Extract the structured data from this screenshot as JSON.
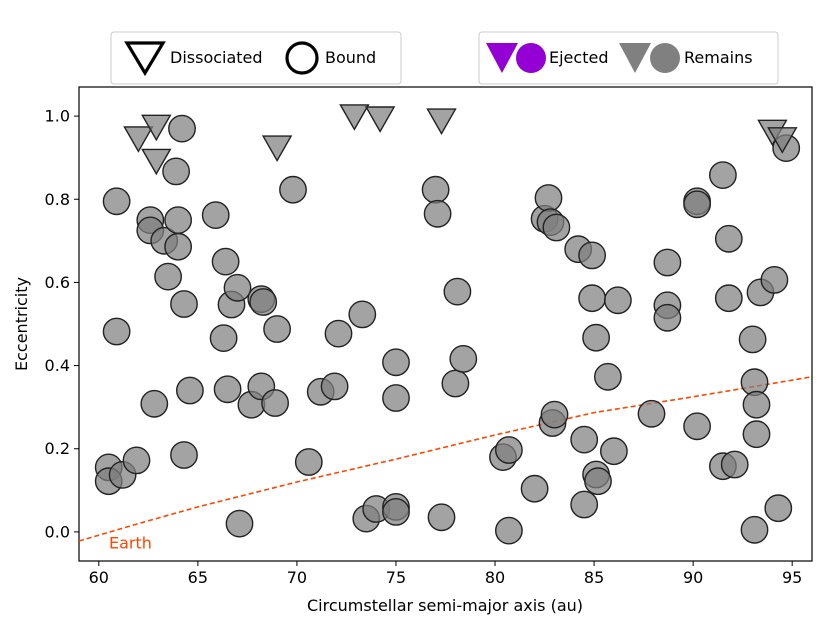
{
  "chart_data": {
    "type": "scatter",
    "xlabel": "Circumstellar semi-major axis (au)",
    "ylabel": "Eccentricity",
    "xlim": [
      59,
      96
    ],
    "ylim": [
      -0.07,
      1.07
    ],
    "x_ticks": [
      60,
      65,
      70,
      75,
      80,
      85,
      90,
      95
    ],
    "y_ticks": [
      0.0,
      0.2,
      0.4,
      0.6,
      0.8,
      1.0
    ],
    "y_tick_labels": [
      "0.0",
      "0.2",
      "0.4",
      "0.6",
      "0.8",
      "1.0"
    ],
    "grid": false,
    "legend": {
      "left": {
        "placement": "top-left",
        "entries": [
          {
            "marker": "triangle-down-open",
            "label": "Dissociated"
          },
          {
            "marker": "circle-open",
            "label": "Bound"
          }
        ]
      },
      "right": {
        "placement": "top-right",
        "entries": [
          {
            "markers": [
              "triangle-down",
              "circle"
            ],
            "color": "#9400D3",
            "label": "Ejected"
          },
          {
            "markers": [
              "triangle-down",
              "circle"
            ],
            "color": "#808080",
            "label": "Remains"
          }
        ]
      }
    },
    "colors": {
      "remains": "#808080",
      "ejected": "#9400D3",
      "earth_line": "#FF4500"
    },
    "earth_curve": {
      "label": "Earth",
      "points": [
        [
          59,
          -0.022
        ],
        [
          62,
          0.02
        ],
        [
          65,
          0.06
        ],
        [
          70,
          0.12
        ],
        [
          75,
          0.175
        ],
        [
          80,
          0.233
        ],
        [
          85,
          0.287
        ],
        [
          90,
          0.325
        ],
        [
          96,
          0.373
        ]
      ]
    },
    "series": [
      {
        "name": "Remains — Bound",
        "marker": "circle",
        "points": [
          [
            60.5,
            0.155
          ],
          [
            60.5,
            0.122
          ],
          [
            60.9,
            0.795
          ],
          [
            60.9,
            0.482
          ],
          [
            61.2,
            0.137
          ],
          [
            61.9,
            0.172
          ],
          [
            62.6,
            0.75
          ],
          [
            62.6,
            0.725
          ],
          [
            62.8,
            0.308
          ],
          [
            63.3,
            0.7
          ],
          [
            63.5,
            0.614
          ],
          [
            63.9,
            0.867
          ],
          [
            64.0,
            0.75
          ],
          [
            64.0,
            0.686
          ],
          [
            64.2,
            0.97
          ],
          [
            64.3,
            0.548
          ],
          [
            64.3,
            0.185
          ],
          [
            64.6,
            0.34
          ],
          [
            65.9,
            0.762
          ],
          [
            66.3,
            0.466
          ],
          [
            66.4,
            0.65
          ],
          [
            66.5,
            0.343
          ],
          [
            66.7,
            0.547
          ],
          [
            67.0,
            0.587
          ],
          [
            67.1,
            0.02
          ],
          [
            67.7,
            0.306
          ],
          [
            68.2,
            0.56
          ],
          [
            68.2,
            0.35
          ],
          [
            68.3,
            0.553
          ],
          [
            68.9,
            0.31
          ],
          [
            69.0,
            0.488
          ],
          [
            69.8,
            0.823
          ],
          [
            70.6,
            0.168
          ],
          [
            71.2,
            0.337
          ],
          [
            71.9,
            0.35
          ],
          [
            72.1,
            0.477
          ],
          [
            73.3,
            0.523
          ],
          [
            73.5,
            0.032
          ],
          [
            74.0,
            0.055
          ],
          [
            75.0,
            0.06
          ],
          [
            75.0,
            0.048
          ],
          [
            75.0,
            0.408
          ],
          [
            75.0,
            0.322
          ],
          [
            77.0,
            0.823
          ],
          [
            77.1,
            0.765
          ],
          [
            77.3,
            0.035
          ],
          [
            78.1,
            0.578
          ],
          [
            78.0,
            0.357
          ],
          [
            78.4,
            0.416
          ],
          [
            80.4,
            0.18
          ],
          [
            80.7,
            0.197
          ],
          [
            80.7,
            0.003
          ],
          [
            82.0,
            0.104
          ],
          [
            82.5,
            0.753
          ],
          [
            82.7,
            0.803
          ],
          [
            82.8,
            0.745
          ],
          [
            82.9,
            0.262
          ],
          [
            83.0,
            0.282
          ],
          [
            83.1,
            0.732
          ],
          [
            84.2,
            0.68
          ],
          [
            84.5,
            0.222
          ],
          [
            84.5,
            0.066
          ],
          [
            84.9,
            0.665
          ],
          [
            84.9,
            0.562
          ],
          [
            85.1,
            0.467
          ],
          [
            85.1,
            0.138
          ],
          [
            85.2,
            0.122
          ],
          [
            85.7,
            0.373
          ],
          [
            86.0,
            0.194
          ],
          [
            86.2,
            0.557
          ],
          [
            87.9,
            0.284
          ],
          [
            88.7,
            0.648
          ],
          [
            88.7,
            0.545
          ],
          [
            88.7,
            0.515
          ],
          [
            90.2,
            0.795
          ],
          [
            90.2,
            0.788
          ],
          [
            90.2,
            0.254
          ],
          [
            91.5,
            0.858
          ],
          [
            91.5,
            0.158
          ],
          [
            91.8,
            0.705
          ],
          [
            91.8,
            0.562
          ],
          [
            92.1,
            0.162
          ],
          [
            93.0,
            0.463
          ],
          [
            93.1,
            0.005
          ],
          [
            93.1,
            0.36
          ],
          [
            93.2,
            0.235
          ],
          [
            93.2,
            0.306
          ],
          [
            93.4,
            0.576
          ],
          [
            94.1,
            0.606
          ],
          [
            94.3,
            0.057
          ],
          [
            94.7,
            0.923
          ]
        ]
      },
      {
        "name": "Remains — Dissociated",
        "marker": "triangle-down",
        "points": [
          [
            62.0,
            0.947
          ],
          [
            62.9,
            0.975
          ],
          [
            62.9,
            0.893
          ],
          [
            69.0,
            0.925
          ],
          [
            72.9,
            1.0
          ],
          [
            74.2,
            0.995
          ],
          [
            77.3,
            0.99
          ],
          [
            94.0,
            0.963
          ],
          [
            94.5,
            0.945
          ]
        ]
      }
    ]
  }
}
